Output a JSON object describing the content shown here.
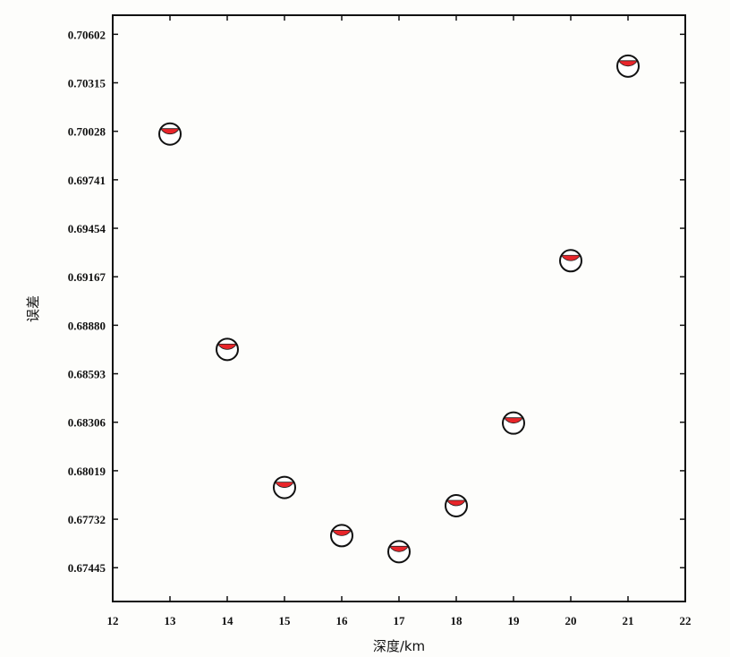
{
  "chart_data": {
    "type": "scatter",
    "title": "",
    "xlabel": "深度/km",
    "ylabel": "误差",
    "xlim": [
      12,
      22
    ],
    "ylim": [
      0.67245,
      0.70715
    ],
    "xticks": [
      "12",
      "13",
      "14",
      "15",
      "16",
      "17",
      "18",
      "19",
      "20",
      "21",
      "22"
    ],
    "yticks": [
      "0.67445",
      "0.67732",
      "0.68019",
      "0.68306",
      "0.68593",
      "0.68880",
      "0.69167",
      "0.69454",
      "0.69741",
      "0.70028",
      "0.70315",
      "0.70602"
    ],
    "grid": false,
    "legend": "none",
    "marker": "beachball",
    "marker_fill_color": "#e8252a",
    "marker_background_color": "#ffffff",
    "points": [
      {
        "x": 13,
        "y": 0.70012
      },
      {
        "x": 14,
        "y": 0.68737
      },
      {
        "x": 15,
        "y": 0.6792
      },
      {
        "x": 16,
        "y": 0.67635
      },
      {
        "x": 17,
        "y": 0.6754
      },
      {
        "x": 18,
        "y": 0.67812
      },
      {
        "x": 19,
        "y": 0.68301
      },
      {
        "x": 20,
        "y": 0.69262
      },
      {
        "x": 21,
        "y": 0.70414
      }
    ]
  }
}
